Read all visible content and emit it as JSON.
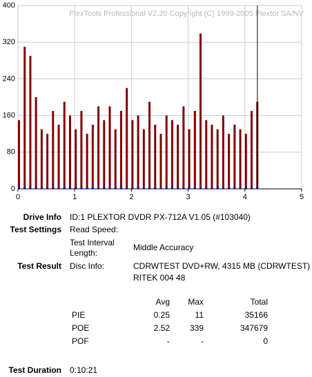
{
  "chart_data": {
    "type": "bar",
    "watermark": "PlexTools Professional V2.20 Copyright (C) 1999-2005 Plextor SA/NV",
    "x": [
      0.0,
      0.1,
      0.2,
      0.3,
      0.4,
      0.5,
      0.6,
      0.7,
      0.8,
      0.9,
      1.0,
      1.1,
      1.2,
      1.3,
      1.4,
      1.5,
      1.6,
      1.7,
      1.8,
      1.9,
      2.0,
      2.1,
      2.2,
      2.3,
      2.4,
      2.5,
      2.6,
      2.7,
      2.8,
      2.9,
      3.0,
      3.1,
      3.2,
      3.3,
      3.4,
      3.5,
      3.6,
      3.7,
      3.8,
      3.9,
      4.0,
      4.1,
      4.2
    ],
    "series": [
      {
        "color": "#800000",
        "values": [
          150,
          310,
          290,
          200,
          130,
          120,
          170,
          140,
          190,
          160,
          130,
          170,
          120,
          140,
          180,
          150,
          180,
          130,
          170,
          220,
          150,
          160,
          130,
          190,
          140,
          120,
          160,
          150,
          140,
          180,
          130,
          170,
          339,
          150,
          140,
          130,
          160,
          120,
          140,
          130,
          120,
          170,
          190
        ]
      },
      {
        "color": "#0000ff",
        "values": [
          4,
          4,
          3,
          4,
          3,
          4,
          3,
          3,
          4,
          3,
          4,
          3,
          3,
          4,
          3,
          4,
          3,
          3,
          4,
          3,
          3,
          4,
          3,
          3,
          4,
          3,
          3,
          4,
          3,
          3,
          4,
          3,
          4,
          3,
          3,
          4,
          3,
          3,
          4,
          3,
          3,
          4,
          4
        ]
      }
    ],
    "end_marker": 4.22,
    "xlim": [
      0,
      5
    ],
    "xticks": [
      0,
      1,
      2,
      3,
      4,
      5
    ],
    "ylim": [
      0,
      400
    ],
    "yticks": [
      0,
      80,
      160,
      240,
      320,
      400
    ],
    "grid": true
  },
  "info": [
    {
      "label": "Drive Info",
      "value": "ID:1 PLEXTOR DVDR PX-712A V1.05 (#103040)"
    },
    {
      "label": "Test Settings",
      "items": [
        {
          "key": "Read Speed:"
        },
        {
          "key": "Test Interval Length:",
          "value": "Middle Accuracy"
        }
      ]
    },
    {
      "label": "Test Result",
      "items": [
        {
          "key": "Disc Info:",
          "lines": [
            "CDRWTEST DVD+RW, 4315 MB (CDRWTEST)",
            "RITEK 004 48"
          ]
        }
      ]
    }
  ],
  "stats": {
    "columns": [
      "Avg",
      "Max",
      "Total"
    ],
    "rows": [
      {
        "name": "PIE",
        "cells": [
          "0.25",
          "11",
          "35166"
        ]
      },
      {
        "name": "POE",
        "cells": [
          "2.52",
          "339",
          "347679"
        ]
      },
      {
        "name": "POF",
        "cells": [
          "-",
          "-",
          "0"
        ]
      }
    ]
  },
  "duration": {
    "label": "Test Duration",
    "value": "0:10:21"
  }
}
